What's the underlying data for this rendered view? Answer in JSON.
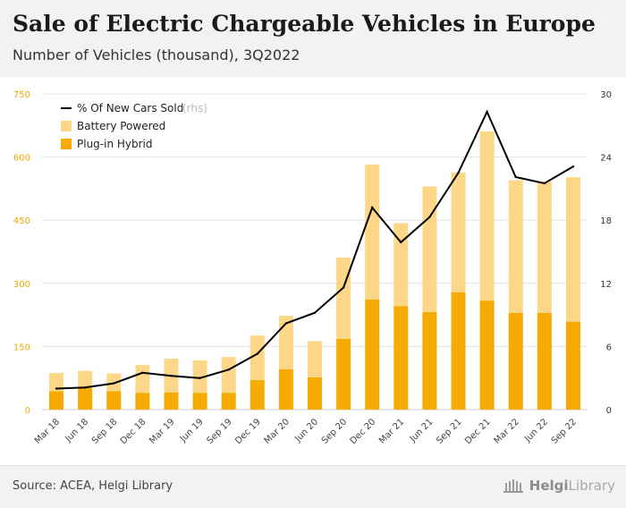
{
  "header": {
    "title": "Sale of Electric Chargeable Vehicles in Europe",
    "subtitle": "Number of Vehicles (thousand), 3Q2022"
  },
  "footer": {
    "source": "Source: ACEA, Helgi Library",
    "brand_word_1": "Helgi",
    "brand_word_2": "Library"
  },
  "chart_data": {
    "type": "bar",
    "categories": [
      "Mar 18",
      "Jun 18",
      "Sep 18",
      "Dec 18",
      "Mar 19",
      "Jun 19",
      "Sep 19",
      "Dec 19",
      "Mar 20",
      "Jun 20",
      "Sep 20",
      "Dec 20",
      "Mar 21",
      "Jun 21",
      "Sep 21",
      "Dec 21",
      "Mar 22",
      "Jun 22",
      "Sep 22"
    ],
    "series": [
      {
        "name": "Plug-in Hybrid",
        "chart": "stacked-bar",
        "axis": "left",
        "color": "#f5ab00",
        "values": [
          44,
          52,
          44,
          40,
          41,
          40,
          40,
          70,
          96,
          77,
          168,
          262,
          246,
          232,
          279,
          259,
          230,
          230,
          209
        ]
      },
      {
        "name": "Battery Powered",
        "chart": "stacked-bar",
        "axis": "left",
        "color": "#fcd787",
        "values": [
          43,
          40,
          42,
          66,
          80,
          77,
          85,
          106,
          127,
          86,
          193,
          320,
          197,
          298,
          284,
          402,
          315,
          312,
          343
        ]
      },
      {
        "name": "% Of New Cars Sold",
        "chart": "line",
        "axis": "right",
        "color": "#000000",
        "values": [
          2.0,
          2.1,
          2.5,
          3.5,
          3.2,
          3.0,
          3.8,
          5.3,
          8.2,
          9.2,
          11.6,
          19.2,
          15.9,
          18.3,
          22.5,
          28.3,
          22.1,
          21.5,
          23.1
        ]
      }
    ],
    "yaxis_left": {
      "range": [
        0,
        750
      ],
      "ticks": [
        0,
        150,
        300,
        450,
        600,
        750
      ]
    },
    "yaxis_right": {
      "range": [
        0,
        30
      ],
      "ticks": [
        0,
        6,
        12,
        18,
        24,
        30
      ]
    },
    "legend": {
      "position": "top-left",
      "items": [
        {
          "label": "% Of New Cars Sold",
          "note": "(rhs)",
          "kind": "line",
          "color": "#000000"
        },
        {
          "label": "Battery Powered",
          "kind": "box",
          "color": "#fcd787"
        },
        {
          "label": "Plug-in Hybrid",
          "kind": "box",
          "color": "#f5ab00"
        }
      ]
    },
    "grid": true,
    "grid_color": "#e3e3e3"
  }
}
